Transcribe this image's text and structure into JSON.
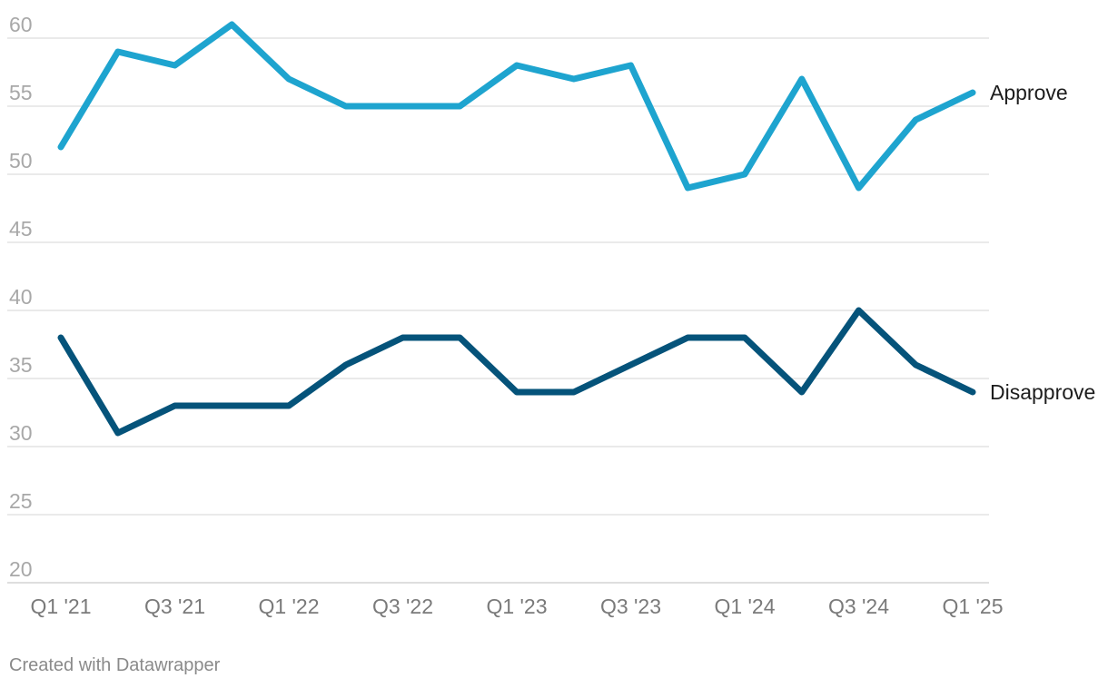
{
  "chart_data": {
    "type": "line",
    "categories": [
      "Q1 '21",
      "Q2 '21",
      "Q3 '21",
      "Q4 '21",
      "Q1 '22",
      "Q2 '22",
      "Q3 '22",
      "Q4 '22",
      "Q1 '23",
      "Q2 '23",
      "Q3 '23",
      "Q4 '23",
      "Q1 '24",
      "Q2 '24",
      "Q3 '24",
      "Q4 '24",
      "Q1 '25"
    ],
    "x_tick_labels": [
      "Q1 '21",
      "Q3 '21",
      "Q1 '22",
      "Q3 '22",
      "Q1 '23",
      "Q3 '23",
      "Q1 '24",
      "Q3 '24",
      "Q1 '25"
    ],
    "y_ticks": [
      20,
      25,
      30,
      35,
      40,
      45,
      50,
      55,
      60
    ],
    "ylim": [
      20,
      60
    ],
    "grid": true,
    "legend": "direct labels at line ends (right)",
    "series": [
      {
        "name": "Approve",
        "color": "#1ea4cf",
        "values": [
          52,
          59,
          58,
          61,
          57,
          55,
          55,
          55,
          58,
          57,
          58,
          49,
          50,
          57,
          49,
          54,
          56
        ]
      },
      {
        "name": "Disapprove",
        "color": "#05537a",
        "values": [
          38,
          31,
          33,
          33,
          33,
          36,
          38,
          38,
          34,
          34,
          36,
          38,
          38,
          34,
          40,
          36,
          34
        ]
      }
    ]
  },
  "credit": "Created with Datawrapper"
}
